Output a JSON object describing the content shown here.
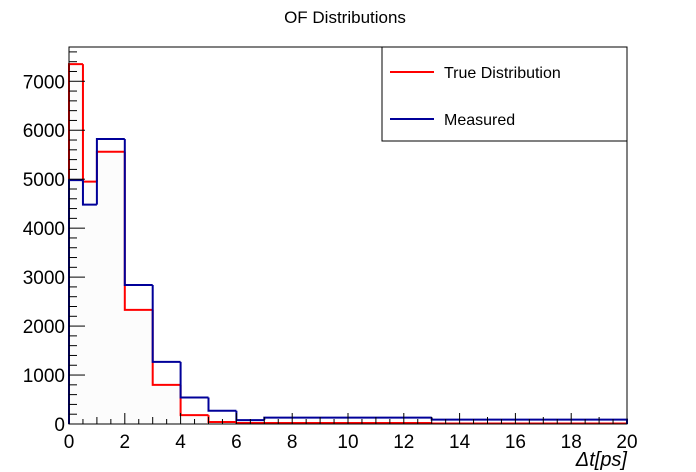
{
  "chart_data": {
    "type": "histogram",
    "title": "OF Distributions",
    "xlabel": "Δt[ps]",
    "ylabel": "",
    "xlim": [
      0,
      20
    ],
    "ylim": [
      0,
      7700
    ],
    "grid": false,
    "legend_position": "top-right",
    "x_ticks": [
      0,
      2,
      4,
      6,
      8,
      10,
      12,
      14,
      16,
      18,
      20
    ],
    "y_ticks": [
      0,
      1000,
      2000,
      3000,
      4000,
      5000,
      6000,
      7000
    ],
    "series": [
      {
        "name": "True Distribution",
        "color": "#ff0000",
        "fill": "#fcfcfc",
        "bin_edges": [
          0,
          0.5,
          1,
          2,
          3,
          4,
          5,
          6,
          7,
          13,
          20
        ],
        "values": [
          7350,
          4950,
          5560,
          2330,
          800,
          180,
          40,
          20,
          20,
          10
        ]
      },
      {
        "name": "Measured",
        "color": "#000099",
        "fill": "none",
        "bin_edges": [
          0,
          0.5,
          1,
          2,
          3,
          4,
          5,
          6,
          7,
          13,
          20
        ],
        "values": [
          4980,
          4480,
          5820,
          2840,
          1270,
          540,
          270,
          80,
          130,
          90
        ]
      }
    ]
  }
}
